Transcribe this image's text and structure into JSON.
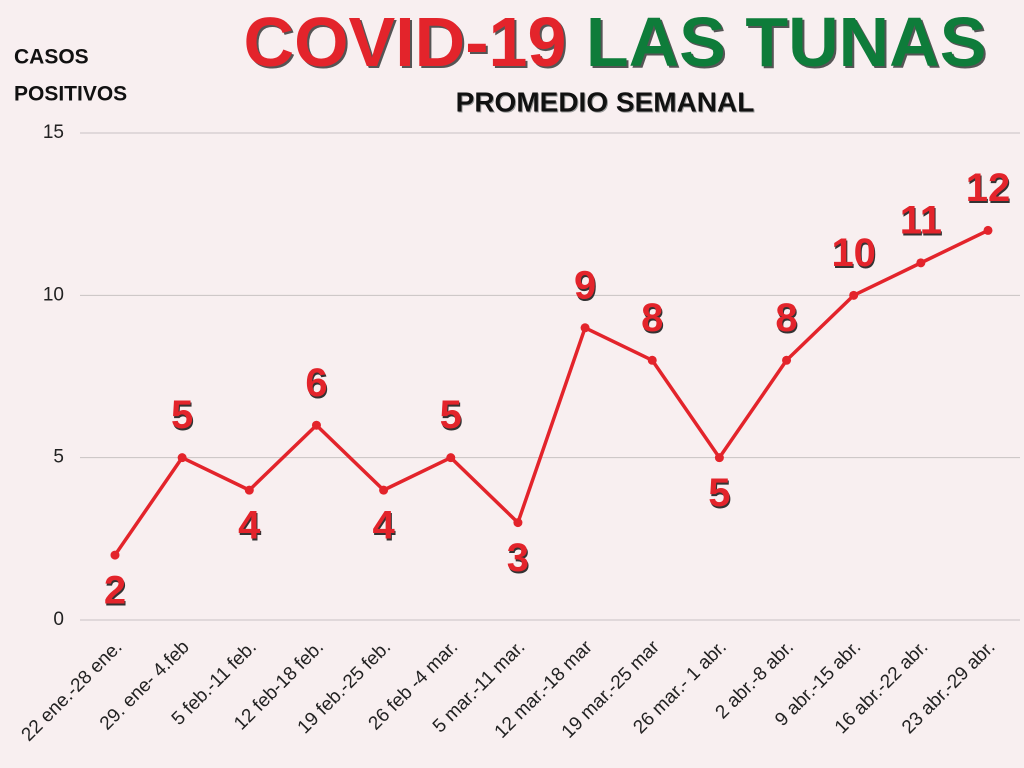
{
  "chart_data": {
    "type": "line",
    "title_parts": [
      {
        "text": "COVID-19",
        "color": "#e3242b"
      },
      {
        "text": "LAS TUNAS",
        "color": "#0e7c3a"
      }
    ],
    "subtitle": "PROMEDIO SEMANAL",
    "y_label": [
      "CASOS",
      "POSITIVOS"
    ],
    "categories": [
      "22 ene.-28 ene.",
      "29. ene- 4.feb",
      "5 feb.-11 feb.",
      "12 feb-18 feb.",
      "19 feb.-25 feb.",
      "26 feb -4 mar.",
      "5 mar.-11 mar.",
      "12 mar.-18 mar",
      "19 mar.-25 mar",
      "26 mar.- 1 abr.",
      "2 abr.-8 abr.",
      "9 abr.-15 abr.",
      "16 abr.-22 abr.",
      "23 abr.-29 abr."
    ],
    "values": [
      2,
      5,
      4,
      6,
      4,
      5,
      3,
      9,
      8,
      5,
      8,
      10,
      11,
      12
    ],
    "color": "#e3242b",
    "ylim": [
      0,
      15
    ],
    "yticks": [
      0,
      5,
      10,
      15
    ],
    "grid": true
  }
}
